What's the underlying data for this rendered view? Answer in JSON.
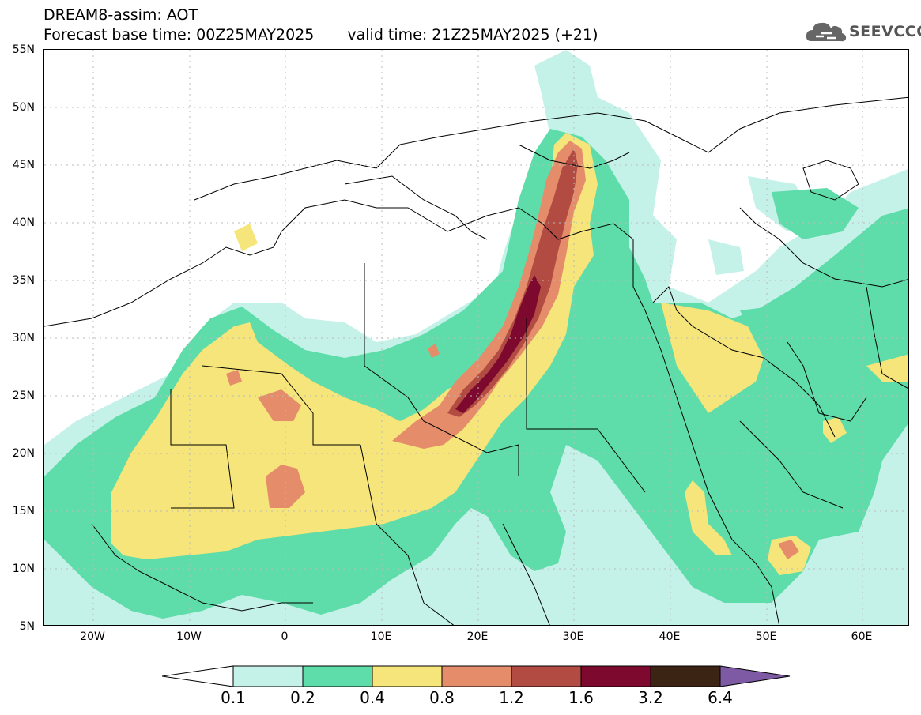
{
  "header": {
    "title_line1": "DREAM8-assim: AOT",
    "base_time_label": "Forecast base time: 00Z25MAY2025",
    "valid_time_label": "valid time: 21Z25MAY2025 (+21)"
  },
  "logo": {
    "text": "SEEVCCC"
  },
  "axes": {
    "lat_labels": [
      "55N",
      "50N",
      "45N",
      "40N",
      "35N",
      "30N",
      "25N",
      "20N",
      "15N",
      "10N",
      "5N"
    ],
    "lon_labels": [
      "20W",
      "10W",
      "0",
      "10E",
      "20E",
      "30E",
      "40E",
      "50E",
      "60E"
    ]
  },
  "colorbar": {
    "thresholds": [
      "0.1",
      "0.2",
      "0.4",
      "0.8",
      "1.2",
      "1.6",
      "3.2",
      "6.4"
    ],
    "colors": [
      "#ffffff",
      "#c4f2e8",
      "#5edcaa",
      "#f5e57a",
      "#e58c6a",
      "#b24c42",
      "#7d0a2e",
      "#3b2414",
      "#7e5aa4"
    ]
  },
  "palette": {
    "c01": "#c4f2e8",
    "c02": "#5edcaa",
    "c04": "#f5e57a",
    "c08": "#e58c6a",
    "c12": "#b24c42",
    "c16": "#7d0a2e"
  }
}
